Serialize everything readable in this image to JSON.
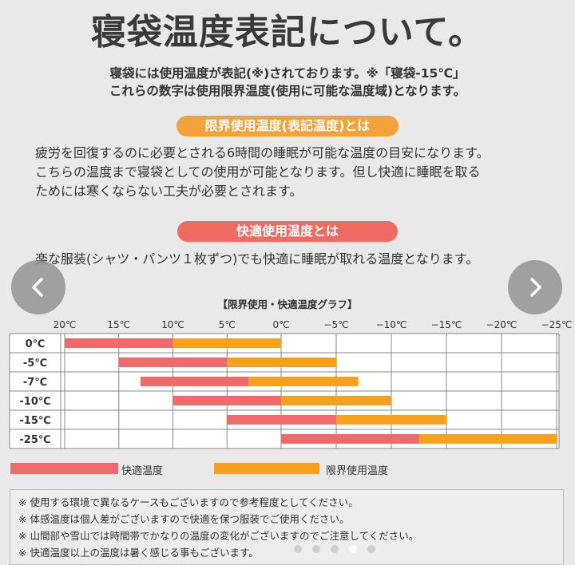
{
  "title": "寝袋温度表記について。",
  "intro": {
    "line1": "寝袋には使用温度が表記(※)されております。※「寝袋-15℃」",
    "line2": "これらの数字は使用限界温度(使用に可能な温度域)となります。"
  },
  "limit_section": {
    "heading": "限界使用温度(表記温度)とは",
    "lines": [
      "疲労を回復するのに必要とされる6時間の睡眠が可能な温度の目安になります。",
      "こちらの温度まで寝袋としての使用が可能となります。但し快適に睡眠を取る",
      "ためには寒くならない工夫が必要とされます。"
    ]
  },
  "comfort_section": {
    "heading": "快適使用温度とは",
    "line": "楽な服装(シャツ・パンツ１枚ずつ)でも快適に睡眠が取れる温度となります。"
  },
  "carousel": {
    "prev_icon": "chevron-left-icon",
    "next_icon": "chevron-right-icon",
    "dot_count": 5,
    "active_dot": 3
  },
  "chart_data": {
    "type": "bar",
    "title": "【限界使用・快適温度グラフ】",
    "x_ticks": [
      20,
      15,
      10,
      5,
      0,
      -5,
      -10,
      -15,
      -20,
      -25
    ],
    "x_tick_labels": [
      "20℃",
      "15℃",
      "10℃",
      "5℃",
      "0℃",
      "−5℃",
      "−10℃",
      "−15℃",
      "−20℃",
      "−25℃"
    ],
    "xlim": [
      20,
      -25
    ],
    "categories": [
      "0℃",
      "-5℃",
      "-7℃",
      "-10℃",
      "-15℃",
      "-25℃"
    ],
    "series": [
      {
        "name": "快適温度",
        "color": "#ef6b6b",
        "ranges": [
          [
            20,
            10
          ],
          [
            15,
            5
          ],
          [
            13,
            3
          ],
          [
            10,
            0
          ],
          [
            5,
            -5
          ],
          [
            0,
            -12.5
          ]
        ]
      },
      {
        "name": "限界使用温度",
        "color": "#f5a11e",
        "ranges": [
          [
            10,
            0
          ],
          [
            5,
            -5
          ],
          [
            3,
            -7
          ],
          [
            0,
            -10
          ],
          [
            -5,
            -15
          ],
          [
            -12.5,
            -25
          ]
        ]
      }
    ],
    "grid": true
  },
  "notes": [
    "※ 使用する環境で異なるケースもございますので参考程度としてください。",
    "※ 体感温度は個人差がございますので快適を保つ服装でご使用ください。",
    "※ 山間部や雪山では時間帯でかなりの温度の変化がございますのでご注意してください。",
    "※ 快適温度以上の温度は暑く感じる事もございます。"
  ]
}
